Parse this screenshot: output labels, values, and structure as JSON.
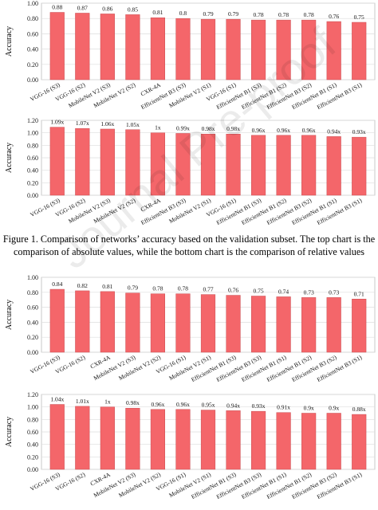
{
  "colors": {
    "bar": "#f4666a",
    "bar_edge": "#c94d52",
    "plot_bg": "#ffffff",
    "grid": "#dddddd"
  },
  "caption": {
    "line1": "Figure 1. Comparison of networks’ accuracy based on the validation subset. The top chart is the",
    "line2": "comparison of absolute values, while the bottom chart is the comparison of relative values"
  },
  "watermark": "Journal Pre-proof",
  "chart_data": [
    {
      "type": "bar",
      "ylabel": "Accuracy",
      "ylim": [
        0,
        1
      ],
      "yticks": [
        0,
        0.2,
        0.4,
        0.6,
        0.8,
        1
      ],
      "ytick_labels": [
        "0.00",
        "0.20",
        "0.40",
        "0.60",
        "0.80",
        "1.00"
      ],
      "grid": true,
      "categories": [
        "VGG-16 (S3)",
        "VGG-16 (S2)",
        "MobileNet V2 (S3)",
        "MobileNet V2 (S2)",
        "CXR-4A",
        "EfficientNet B3 (S3)",
        "MobileNet V2 (S1)",
        "VGG-16 (S1)",
        "EfficientNet B1 (S3)",
        "EfficientNet B1 (S2)",
        "EfficientNet B3 (S2)",
        "EfficientNet B1 (S1)",
        "EfficientNet B3 (S1)"
      ],
      "values": [
        0.88,
        0.87,
        0.86,
        0.85,
        0.81,
        0.8,
        0.79,
        0.79,
        0.78,
        0.78,
        0.78,
        0.76,
        0.75
      ],
      "data_labels": [
        "0.88",
        "0.87",
        "0.86",
        "0.85",
        "0.81",
        "0.8",
        "0.79",
        "0.79",
        "0.78",
        "0.78",
        "0.78",
        "0.76",
        "0.75"
      ]
    },
    {
      "type": "bar",
      "ylabel": "Accuracy",
      "ylim": [
        0,
        1.2
      ],
      "yticks": [
        0,
        0.2,
        0.4,
        0.6,
        0.8,
        1,
        1.2
      ],
      "ytick_labels": [
        "0.00",
        "0.20",
        "0.40",
        "0.60",
        "0.80",
        "1.00",
        "1.20"
      ],
      "grid": true,
      "categories": [
        "VGG-16 (S3)",
        "VGG-16 (S2)",
        "MobileNet V2 (S3)",
        "MobileNet V2 (S2)",
        "CXR-4A",
        "EfficientNet B3 (S3)",
        "MobileNet V2 (S1)",
        "VGG-16 (S1)",
        "EfficientNet B1 (S3)",
        "EfficientNet B1 (S2)",
        "EfficientNet B3 (S2)",
        "EfficientNet B1 (S1)",
        "EfficientNet B3 (S1)"
      ],
      "values": [
        1.09,
        1.07,
        1.06,
        1.05,
        1,
        0.99,
        0.98,
        0.98,
        0.96,
        0.96,
        0.96,
        0.94,
        0.93
      ],
      "data_labels": [
        "1.09x",
        "1.07x",
        "1.06x",
        "1.05x",
        "1x",
        "0.99x",
        "0.98x",
        "0.98x",
        "0.96x",
        "0.96x",
        "0.96x",
        "0.94x",
        "0.93x"
      ]
    },
    {
      "type": "bar",
      "ylabel": "Accuracy",
      "ylim": [
        0,
        1
      ],
      "yticks": [
        0,
        0.2,
        0.4,
        0.6,
        0.8,
        1
      ],
      "ytick_labels": [
        "0.00",
        "0.20",
        "0.40",
        "0.60",
        "0.80",
        "1.00"
      ],
      "grid": true,
      "categories": [
        "VGG-16 (S3)",
        "VGG-16 (S2)",
        "CXR-4A",
        "MobileNet V2 (S3)",
        "MobileNet V2 (S2)",
        "VGG-16 (S1)",
        "MobileNet V2 (S1)",
        "EfficientNet B1 (S3)",
        "EfficientNet B3 (S3)",
        "EfficientNet B1 (S1)",
        "EfficientNet B1 (S2)",
        "EfficientNet B3 (S2)",
        "EfficientNet B3 (S1)"
      ],
      "values": [
        0.84,
        0.82,
        0.81,
        0.79,
        0.78,
        0.78,
        0.77,
        0.76,
        0.75,
        0.74,
        0.73,
        0.73,
        0.71
      ],
      "data_labels": [
        "0.84",
        "0.82",
        "0.81",
        "0.79",
        "0.78",
        "0.78",
        "0.77",
        "0.76",
        "0.75",
        "0.74",
        "0.73",
        "0.73",
        "0.71"
      ]
    },
    {
      "type": "bar",
      "ylabel": "Accuracy",
      "ylim": [
        0,
        1.2
      ],
      "yticks": [
        0,
        0.2,
        0.4,
        0.6,
        0.8,
        1,
        1.2
      ],
      "ytick_labels": [
        "0.00",
        "0.20",
        "0.40",
        "0.60",
        "0.80",
        "1.00",
        "1.20"
      ],
      "grid": true,
      "categories": [
        "VGG-16 (S3)",
        "VGG-16 (S2)",
        "CXR-4A",
        "MobileNet V2 (S3)",
        "MobileNet V2 (S2)",
        "VGG-16 (S1)",
        "MobileNet V2 (S1)",
        "EfficientNet B1 (S3)",
        "EfficientNet B3 (S3)",
        "EfficientNet B1 (S1)",
        "EfficientNet B1 (S2)",
        "EfficientNet B3 (S2)",
        "EfficientNet B3 (S1)"
      ],
      "values": [
        1.04,
        1.01,
        1,
        0.98,
        0.96,
        0.96,
        0.95,
        0.94,
        0.93,
        0.91,
        0.9,
        0.9,
        0.88
      ],
      "data_labels": [
        "1.04x",
        "1.01x",
        "1x",
        "0.98x",
        "0.96x",
        "0.96x",
        "0.95x",
        "0.94x",
        "0.93x",
        "0.91x",
        "0.9x",
        "0.9x",
        "0.88x"
      ]
    }
  ]
}
